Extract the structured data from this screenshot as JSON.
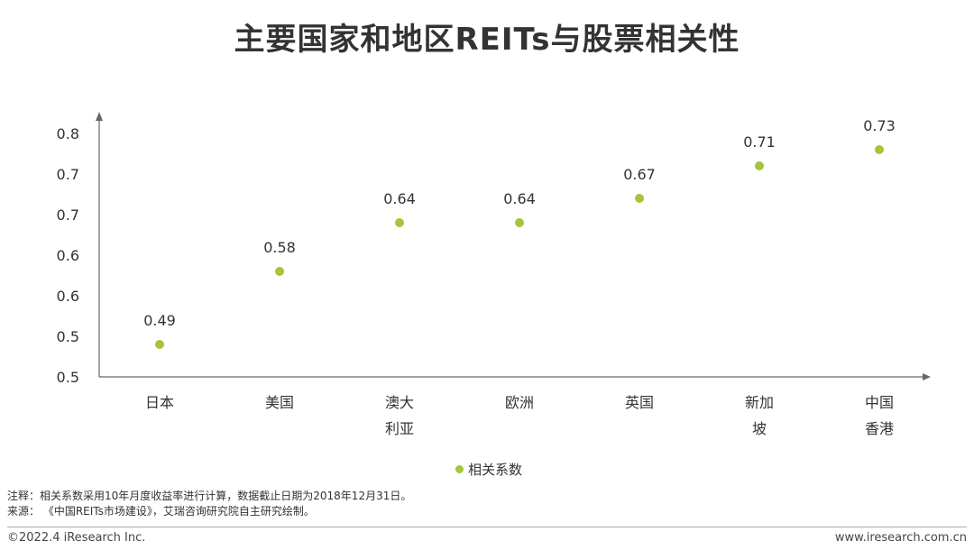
{
  "title": "主要国家和地区REITs与股票相关性",
  "colors": {
    "marker": "#a4c639",
    "axis": "#666666",
    "text": "#333333"
  },
  "chart_data": {
    "type": "scatter",
    "title": "主要国家和地区REITs与股票相关性",
    "xlabel": "",
    "ylabel": "",
    "categories": [
      [
        "日本"
      ],
      [
        "美国"
      ],
      [
        "澳大",
        "利亚"
      ],
      [
        "欧洲"
      ],
      [
        "英国"
      ],
      [
        "新加",
        "坡"
      ],
      [
        "中国",
        "香港"
      ]
    ],
    "series": [
      {
        "name": "相关系数",
        "values": [
          0.49,
          0.58,
          0.64,
          0.64,
          0.67,
          0.71,
          0.73
        ]
      }
    ],
    "y_tick_labels": [
      "0.5",
      "0.5",
      "0.6",
      "0.6",
      "0.7",
      "0.7",
      "0.8"
    ],
    "ylim": [
      0.45,
      0.75
    ],
    "grid": false,
    "legend": "bottom"
  },
  "notes": {
    "line1": "注释：相关系数采用10年月度收益率进行计算，数据截止日期为2018年12月31日。",
    "line2": "来源：  《中国REITs市场建设》，艾瑞咨询研究院自主研究绘制。"
  },
  "footer": {
    "copyright": "©2022.4 iResearch Inc.",
    "url": "www.iresearch.com.cn"
  }
}
